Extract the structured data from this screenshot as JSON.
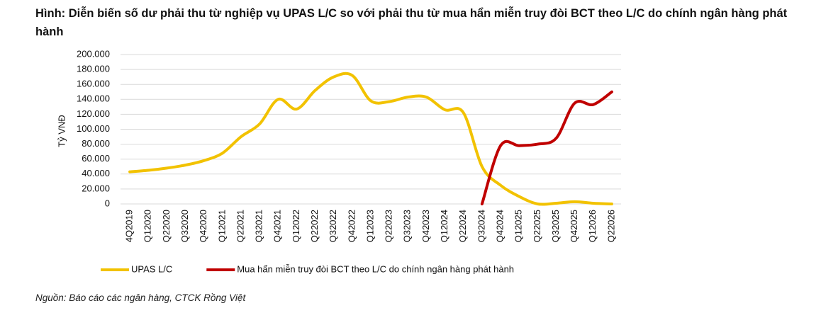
{
  "chart_data": {
    "type": "line",
    "title": "Hình: Diễn biến số dư phải thu từ nghiệp vụ UPAS L/C so với phải thu từ mua hẩn miễn truy đòi BCT theo L/C do chính ngân hàng phát hành",
    "y_label": "Tỷ VNĐ",
    "source": "Nguồn: Báo cáo các ngân hàng, CTCK Rồng Việt",
    "categories": [
      "4Q2019",
      "Q12020",
      "Q22020",
      "Q32020",
      "Q42020",
      "Q12021",
      "Q22021",
      "Q32021",
      "Q42021",
      "Q12022",
      "Q22022",
      "Q32022",
      "Q42022",
      "Q12023",
      "Q22023",
      "Q32023",
      "Q42023",
      "Q12024",
      "Q22024",
      "Q32024",
      "Q42024",
      "Q12025",
      "Q22025",
      "Q32025",
      "Q42025",
      "Q12026",
      "Q22026"
    ],
    "series": [
      {
        "name": "UPAS L/C",
        "color": "#f2c200",
        "values": [
          43000,
          45000,
          48000,
          52000,
          58000,
          68000,
          90000,
          107000,
          140000,
          127000,
          152000,
          170000,
          172000,
          138000,
          137000,
          143000,
          143000,
          126000,
          122000,
          50000,
          25000,
          10000,
          0,
          1000,
          3000,
          1000,
          0
        ]
      },
      {
        "name": "Mua hẩn miễn truy đòi BCT theo L/C do chính ngân hàng phát hành",
        "color": "#c00000",
        "values": [
          null,
          null,
          null,
          null,
          null,
          null,
          null,
          null,
          null,
          null,
          null,
          null,
          null,
          null,
          null,
          null,
          null,
          null,
          null,
          0,
          78000,
          78000,
          80000,
          88000,
          135000,
          133000,
          150000
        ]
      }
    ],
    "ylim": [
      0,
      200000
    ],
    "yticks": [
      0,
      {
        "value": 20000,
        "label": "20.000"
      },
      {
        "value": 40000,
        "label": "40.000"
      },
      {
        "value": 60000,
        "label": "60.000"
      },
      {
        "value": 80000,
        "label": "80.000"
      },
      {
        "value": 100000,
        "label": "100.000"
      },
      {
        "value": 120000,
        "label": "120.000"
      },
      {
        "value": 140000,
        "label": "140.000"
      },
      {
        "value": 160000,
        "label": "160.000"
      },
      {
        "value": 180000,
        "label": "180.000"
      },
      {
        "value": 200000,
        "label": "200.000"
      }
    ],
    "grid": true
  }
}
